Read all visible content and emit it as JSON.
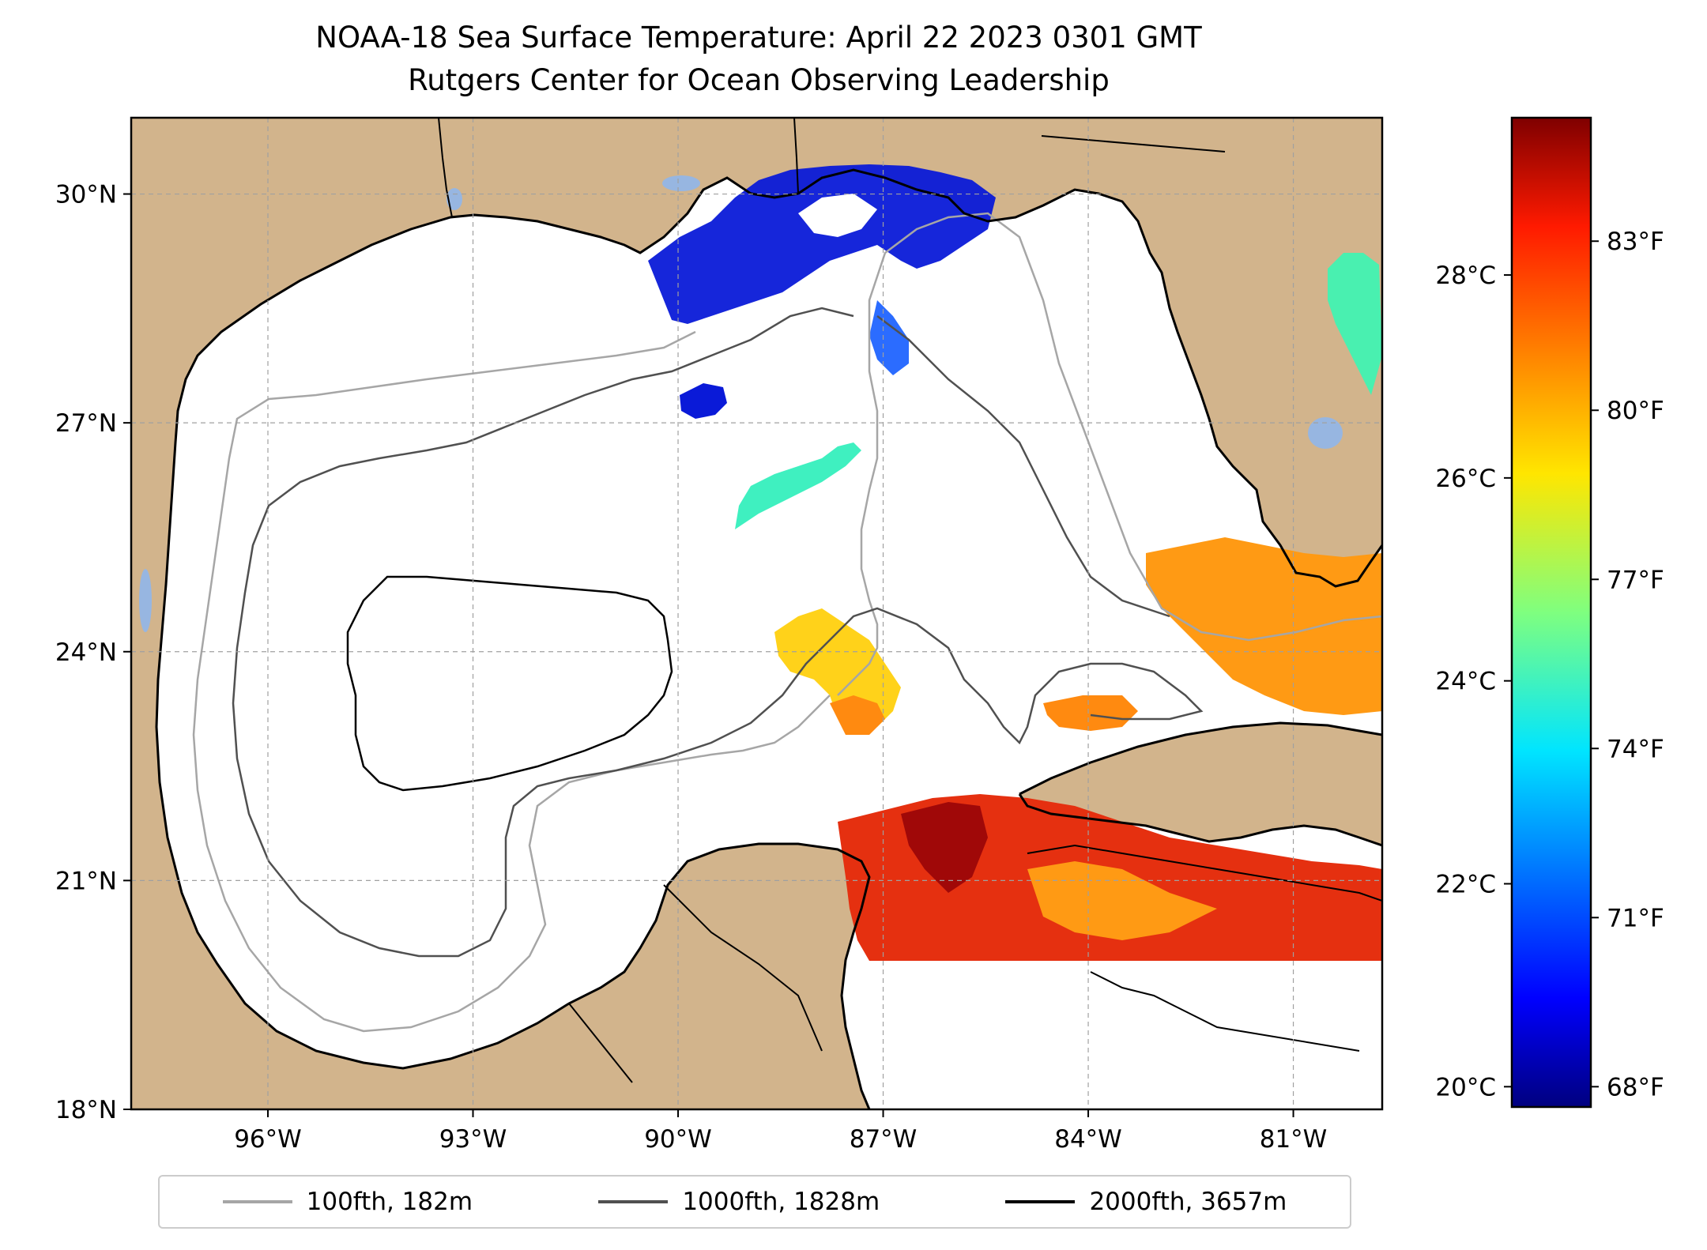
{
  "title": {
    "line1": "NOAA-18 Sea Surface Temperature: April 22 2023 0301 GMT",
    "line2": "Rutgers Center for Ocean Observing Leadership"
  },
  "map": {
    "extent": {
      "lon_min": -98.0,
      "lon_max": -79.7,
      "lat_min": 18.0,
      "lat_max": 31.0
    },
    "lat_ticks": [
      {
        "value": 18,
        "label": "18°N"
      },
      {
        "value": 21,
        "label": "21°N"
      },
      {
        "value": 24,
        "label": "24°N"
      },
      {
        "value": 27,
        "label": "27°N"
      },
      {
        "value": 30,
        "label": "30°N"
      }
    ],
    "lon_ticks": [
      {
        "value": -96,
        "label": "96°W"
      },
      {
        "value": -93,
        "label": "93°W"
      },
      {
        "value": -90,
        "label": "90°W"
      },
      {
        "value": -87,
        "label": "87°W"
      },
      {
        "value": -84,
        "label": "84°W"
      },
      {
        "value": -81,
        "label": "81°W"
      }
    ],
    "grid": true,
    "land_color": "#D2B48C",
    "water_color": "#ffffff",
    "inland_water_color": "#97b6e1"
  },
  "colorbar": {
    "colormap": "jet",
    "celsius_ticks": [
      {
        "value": 20,
        "label": "20°C"
      },
      {
        "value": 22,
        "label": "22°C"
      },
      {
        "value": 24,
        "label": "24°C"
      },
      {
        "value": 26,
        "label": "26°C"
      },
      {
        "value": 28,
        "label": "28°C"
      }
    ],
    "fahrenheit_ticks": [
      {
        "value": 68,
        "label": "68°F"
      },
      {
        "value": 71,
        "label": "71°F"
      },
      {
        "value": 74,
        "label": "74°F"
      },
      {
        "value": 77,
        "label": "77°F"
      },
      {
        "value": 80,
        "label": "80°F"
      },
      {
        "value": 83,
        "label": "83°F"
      }
    ]
  },
  "legend": {
    "location": "bottom",
    "items": [
      {
        "label": "100fth, 182m",
        "color": "#a6a6a6"
      },
      {
        "label": "1000fth, 1828m",
        "color": "#505050"
      },
      {
        "label": "2000fth, 3657m",
        "color": "#000000"
      }
    ]
  }
}
